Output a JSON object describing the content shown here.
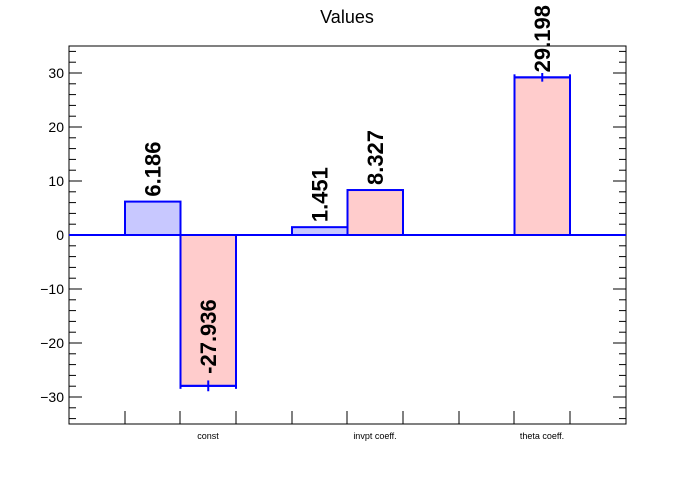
{
  "chart_data": {
    "type": "bar",
    "title": "Values",
    "xlabel": "",
    "ylabel": "",
    "categories": [
      "const",
      "invpt coeff.",
      "theta coeff."
    ],
    "series": [
      {
        "values": [
          6.186,
          1.451,
          null
        ],
        "value_labels": [
          "6.186",
          "1.451",
          ""
        ],
        "errors": [
          0,
          0,
          0
        ],
        "fill_color": "#c8c8ff",
        "line_color": "#0000ff"
      },
      {
        "values": [
          -27.936,
          8.327,
          29.198
        ],
        "value_labels": [
          "-27.936",
          "8.327",
          "29.198"
        ],
        "errors": [
          1.0,
          0,
          0.8
        ],
        "fill_color": "#ffcccc",
        "line_color": "#0000ff"
      }
    ],
    "ylim": [
      -35,
      35
    ],
    "yticks": [
      -30,
      -20,
      -10,
      0,
      10,
      20,
      30
    ],
    "ytick_labels": [
      "−30",
      "−20",
      "−10",
      "0",
      "10",
      "20",
      "30"
    ],
    "grid": false,
    "legend": "none",
    "frame_color": "#000000",
    "zero_line_color": "#0000ff"
  }
}
